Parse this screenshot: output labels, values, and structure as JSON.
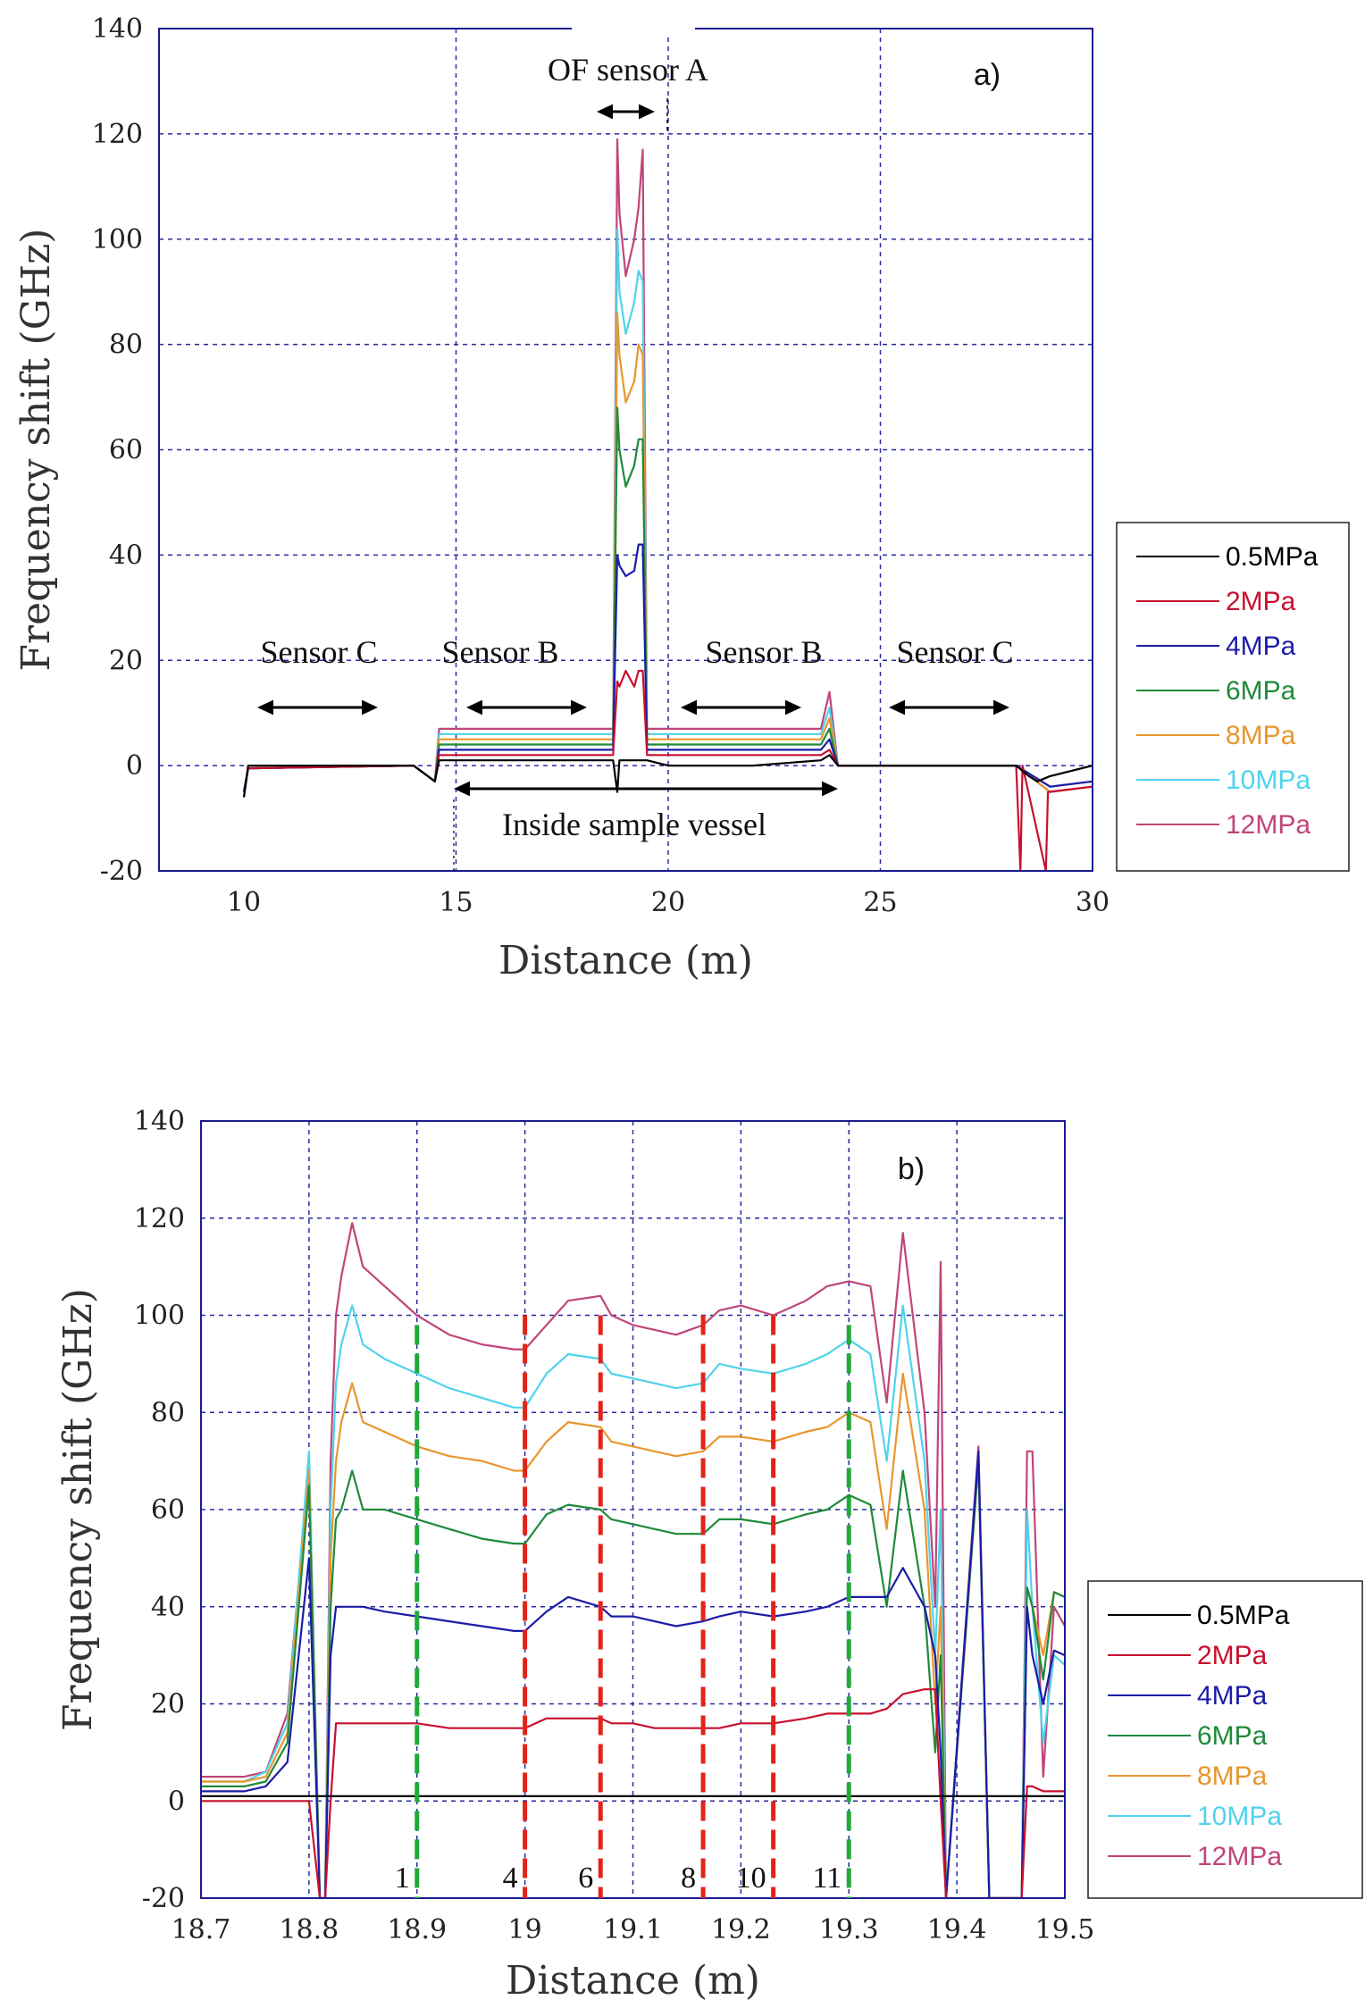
{
  "colors": {
    "0.5MPa": "#000000",
    "2MPa": "#c8102e",
    "4MPa": "#1c1ca8",
    "6MPa": "#1f8a3a",
    "8MPa": "#e8962e",
    "10MPa": "#4fd3ec",
    "12MPa": "#c0457a",
    "grid": "#2a2aa0",
    "frame": "#1a1a90",
    "green_dash": "#1faa3a",
    "red_dash": "#e2231a"
  },
  "chart_data": [
    {
      "id": "a",
      "type": "line",
      "panel_label": "a)",
      "xlabel": "Distance (m)",
      "ylabel": "Frequency shift (GHz)",
      "xlim": [
        8,
        30
      ],
      "ylim": [
        -20,
        140
      ],
      "xticks": [
        10,
        15,
        20,
        25,
        30
      ],
      "yticks": [
        -20,
        0,
        20,
        40,
        60,
        80,
        100,
        120,
        140
      ],
      "xtick_labels": [
        "10",
        "15",
        "20",
        "25",
        "30"
      ],
      "ytick_labels": [
        "-20",
        "0",
        "20",
        "40",
        "60",
        "80",
        "100",
        "120",
        "140"
      ],
      "legend": [
        "0.5MPa",
        "2MPa",
        "4MPa",
        "6MPa",
        "8MPa",
        "10MPa",
        "12MPa"
      ],
      "annotations": {
        "of_sensor_a": "OF sensor A",
        "sensor_c_left": "Sensor C",
        "sensor_b_left": "Sensor B",
        "sensor_b_right": "Sensor B",
        "sensor_c_right": "Sensor C",
        "inside_vessel": "Inside sample vessel"
      },
      "series": [
        {
          "name": "0.5MPa",
          "x": [
            10,
            10.1,
            14,
            14.5,
            14.6,
            16,
            18,
            18.7,
            18.8,
            18.85,
            19.0,
            19.2,
            19.3,
            19.4,
            19.5,
            20,
            22,
            23.6,
            23.8,
            24,
            25,
            27,
            28.2,
            28.5,
            28.7,
            29,
            30
          ],
          "y": [
            -6,
            0,
            0,
            -3,
            1,
            1,
            1,
            1,
            -5,
            1,
            1,
            1,
            1,
            1,
            1,
            0,
            0,
            1,
            2,
            0,
            0,
            0,
            0,
            -2,
            -3,
            -2,
            0
          ]
        },
        {
          "name": "2MPa",
          "x": [
            10,
            10.1,
            14,
            14.5,
            14.6,
            16,
            18,
            18.7,
            18.8,
            18.85,
            19.0,
            19.2,
            19.3,
            19.4,
            19.5,
            20,
            22,
            23.6,
            23.8,
            24,
            25,
            27,
            28.2,
            28.3,
            28.35,
            28.9,
            28.95,
            30
          ],
          "y": [
            -6,
            -0.5,
            0,
            -3,
            2,
            2,
            2,
            2,
            16,
            15,
            18,
            15,
            18,
            18,
            2,
            2,
            2,
            2,
            3,
            0,
            0,
            0,
            0,
            -20,
            0,
            -20,
            -5,
            -4
          ]
        },
        {
          "name": "4MPa",
          "x": [
            10,
            10.1,
            14,
            14.5,
            14.6,
            16,
            18,
            18.7,
            18.8,
            18.85,
            19.0,
            19.2,
            19.3,
            19.4,
            19.5,
            20,
            22,
            23.6,
            23.8,
            24,
            25,
            27,
            28.2,
            29,
            30
          ],
          "y": [
            -5,
            -0.5,
            0,
            -3,
            3,
            3,
            3,
            3,
            40,
            38,
            36,
            37,
            42,
            42,
            3,
            3,
            3,
            3,
            5,
            0,
            0,
            0,
            0,
            -4,
            -3
          ]
        },
        {
          "name": "6MPa",
          "x": [
            10,
            10.1,
            14,
            14.5,
            14.6,
            16,
            18,
            18.7,
            18.8,
            18.85,
            19.0,
            19.2,
            19.3,
            19.4,
            19.5,
            20,
            22,
            23.6,
            23.8,
            24,
            25,
            27,
            28.2,
            29,
            30
          ],
          "y": [
            -5,
            -0.5,
            0,
            -3,
            4,
            4,
            4,
            4,
            68,
            60,
            53,
            57,
            62,
            62,
            4,
            4,
            4,
            4,
            7,
            0,
            0,
            0,
            0,
            -4,
            -3
          ]
        },
        {
          "name": "8MPa",
          "x": [
            10,
            10.1,
            14,
            14.5,
            14.6,
            16,
            18,
            18.7,
            18.8,
            18.85,
            19.0,
            19.2,
            19.3,
            19.4,
            19.5,
            20,
            22,
            23.6,
            23.8,
            24,
            25,
            27,
            28.2,
            29,
            30
          ],
          "y": [
            -5,
            -0.5,
            0,
            -3,
            5,
            5,
            5,
            5,
            86,
            78,
            69,
            73,
            80,
            78,
            5,
            5,
            5,
            5,
            9,
            0,
            0,
            0,
            0,
            -5,
            -4
          ]
        },
        {
          "name": "10MPa",
          "x": [
            10,
            10.1,
            14,
            14.5,
            14.6,
            16,
            18,
            18.7,
            18.8,
            18.85,
            19.0,
            19.2,
            19.3,
            19.4,
            19.5,
            20,
            22,
            23.6,
            23.8,
            24,
            25,
            27,
            28.2,
            29,
            30
          ],
          "y": [
            -5,
            -0.5,
            0,
            -3,
            6,
            6,
            6,
            6,
            102,
            90,
            82,
            88,
            94,
            92,
            6,
            6,
            6,
            6,
            11,
            0,
            0,
            0,
            0,
            -5,
            -4
          ]
        },
        {
          "name": "12MPa",
          "x": [
            10,
            10.1,
            14,
            14.5,
            14.6,
            16,
            18,
            18.7,
            18.8,
            18.85,
            19.0,
            19.2,
            19.3,
            19.4,
            19.5,
            20,
            22,
            23.6,
            23.8,
            24,
            25,
            27,
            28.2,
            29,
            30
          ],
          "y": [
            -5,
            -0.5,
            0,
            -3,
            7,
            7,
            7,
            7,
            119,
            105,
            93,
            100,
            106,
            117,
            7,
            7,
            7,
            7,
            14,
            0,
            0,
            0,
            0,
            -5,
            -4
          ]
        }
      ]
    },
    {
      "id": "b",
      "type": "line",
      "panel_label": "b)",
      "xlabel": "Distance (m)",
      "ylabel": "Frequency shift (GHz)",
      "xlim": [
        18.7,
        19.5
      ],
      "ylim": [
        -20,
        140
      ],
      "xticks": [
        18.7,
        18.8,
        18.9,
        19.0,
        19.1,
        19.2,
        19.3,
        19.4,
        19.5
      ],
      "yticks": [
        -20,
        0,
        20,
        40,
        60,
        80,
        100,
        120,
        140
      ],
      "xtick_labels": [
        "18.7",
        "18.8",
        "18.9",
        "19",
        "19.1",
        "19.2",
        "19.3",
        "19.4",
        "19.5"
      ],
      "ytick_labels": [
        "-20",
        "0",
        "20",
        "40",
        "60",
        "80",
        "100",
        "120",
        "140"
      ],
      "legend": [
        "0.5MPa",
        "2MPa",
        "4MPa",
        "6MPa",
        "8MPa",
        "10MPa",
        "12MPa"
      ],
      "markers": [
        {
          "label": "1",
          "x": 18.9,
          "color": "green"
        },
        {
          "label": "4",
          "x": 19.0,
          "color": "red"
        },
        {
          "label": "6",
          "x": 19.07,
          "color": "red"
        },
        {
          "label": "8",
          "x": 19.165,
          "color": "red"
        },
        {
          "label": "10",
          "x": 19.23,
          "color": "red"
        },
        {
          "label": "11",
          "x": 19.3,
          "color": "green"
        }
      ],
      "x": [
        18.7,
        18.74,
        18.76,
        18.78,
        18.8,
        18.81,
        18.815,
        18.82,
        18.825,
        18.83,
        18.84,
        18.85,
        18.87,
        18.9,
        18.93,
        18.96,
        18.99,
        19.0,
        19.02,
        19.04,
        19.07,
        19.08,
        19.1,
        19.12,
        19.14,
        19.165,
        19.18,
        19.2,
        19.23,
        19.26,
        19.28,
        19.3,
        19.32,
        19.335,
        19.35,
        19.37,
        19.38,
        19.385,
        19.39,
        19.42,
        19.43,
        19.46,
        19.465,
        19.47,
        19.48,
        19.49,
        19.5
      ],
      "series": [
        {
          "name": "0.5MPa",
          "y": [
            1,
            1,
            1,
            1,
            1,
            1,
            1,
            1,
            1,
            1,
            1,
            1,
            1,
            1,
            1,
            1,
            1,
            1,
            1,
            1,
            1,
            1,
            1,
            1,
            1,
            1,
            1,
            1,
            1,
            1,
            1,
            1,
            1,
            1,
            1,
            1,
            1,
            1,
            1,
            1,
            1,
            1,
            1,
            1,
            1,
            1,
            1
          ]
        },
        {
          "name": "2MPa",
          "y": [
            0,
            0,
            0,
            0,
            0,
            -20,
            -20,
            0,
            16,
            16,
            16,
            16,
            16,
            16,
            15,
            15,
            15,
            15,
            17,
            17,
            17,
            16,
            16,
            15,
            15,
            15,
            15,
            16,
            16,
            17,
            18,
            18,
            18,
            19,
            22,
            23,
            23,
            0,
            -20,
            -20,
            -20,
            -20,
            3,
            3,
            2,
            2,
            2
          ]
        },
        {
          "name": "4MPa",
          "y": [
            2,
            2,
            3,
            8,
            50,
            -20,
            -20,
            30,
            40,
            40,
            40,
            40,
            39,
            38,
            37,
            36,
            35,
            35,
            39,
            42,
            40,
            38,
            38,
            37,
            36,
            37,
            38,
            39,
            38,
            39,
            40,
            42,
            42,
            42,
            48,
            40,
            30,
            10,
            -20,
            72,
            -20,
            -20,
            40,
            30,
            20,
            31,
            30
          ]
        },
        {
          "name": "6MPa",
          "y": [
            3,
            3,
            4,
            12,
            65,
            -20,
            -20,
            40,
            58,
            60,
            68,
            60,
            60,
            58,
            56,
            54,
            53,
            53,
            59,
            61,
            60,
            58,
            57,
            56,
            55,
            55,
            58,
            58,
            57,
            59,
            60,
            63,
            61,
            40,
            68,
            40,
            10,
            30,
            -20,
            70,
            -20,
            -20,
            44,
            40,
            25,
            43,
            42
          ]
        },
        {
          "name": "8MPa",
          "y": [
            4,
            4,
            5,
            14,
            68,
            -20,
            -20,
            50,
            70,
            78,
            86,
            78,
            76,
            73,
            71,
            70,
            68,
            68,
            74,
            78,
            77,
            74,
            73,
            72,
            71,
            72,
            75,
            75,
            74,
            76,
            77,
            80,
            78,
            56,
            88,
            60,
            20,
            40,
            -20,
            70,
            -20,
            -20,
            44,
            40,
            30,
            43,
            42
          ]
        },
        {
          "name": "10MPa",
          "y": [
            4,
            4,
            6,
            16,
            72,
            -20,
            -20,
            60,
            86,
            94,
            102,
            94,
            91,
            88,
            85,
            83,
            81,
            81,
            88,
            92,
            91,
            88,
            87,
            86,
            85,
            86,
            90,
            89,
            88,
            90,
            92,
            95,
            92,
            70,
            102,
            70,
            30,
            60,
            -20,
            70,
            -20,
            -20,
            60,
            40,
            12,
            30,
            28
          ]
        },
        {
          "name": "12MPa",
          "y": [
            5,
            5,
            6,
            18,
            70,
            -20,
            -20,
            70,
            100,
            108,
            119,
            110,
            106,
            100,
            96,
            94,
            93,
            93,
            98,
            103,
            104,
            100,
            98,
            97,
            96,
            98,
            101,
            102,
            100,
            103,
            106,
            107,
            106,
            82,
            117,
            80,
            40,
            111,
            -20,
            73,
            -20,
            -20,
            72,
            72,
            5,
            40,
            36
          ]
        }
      ]
    }
  ]
}
